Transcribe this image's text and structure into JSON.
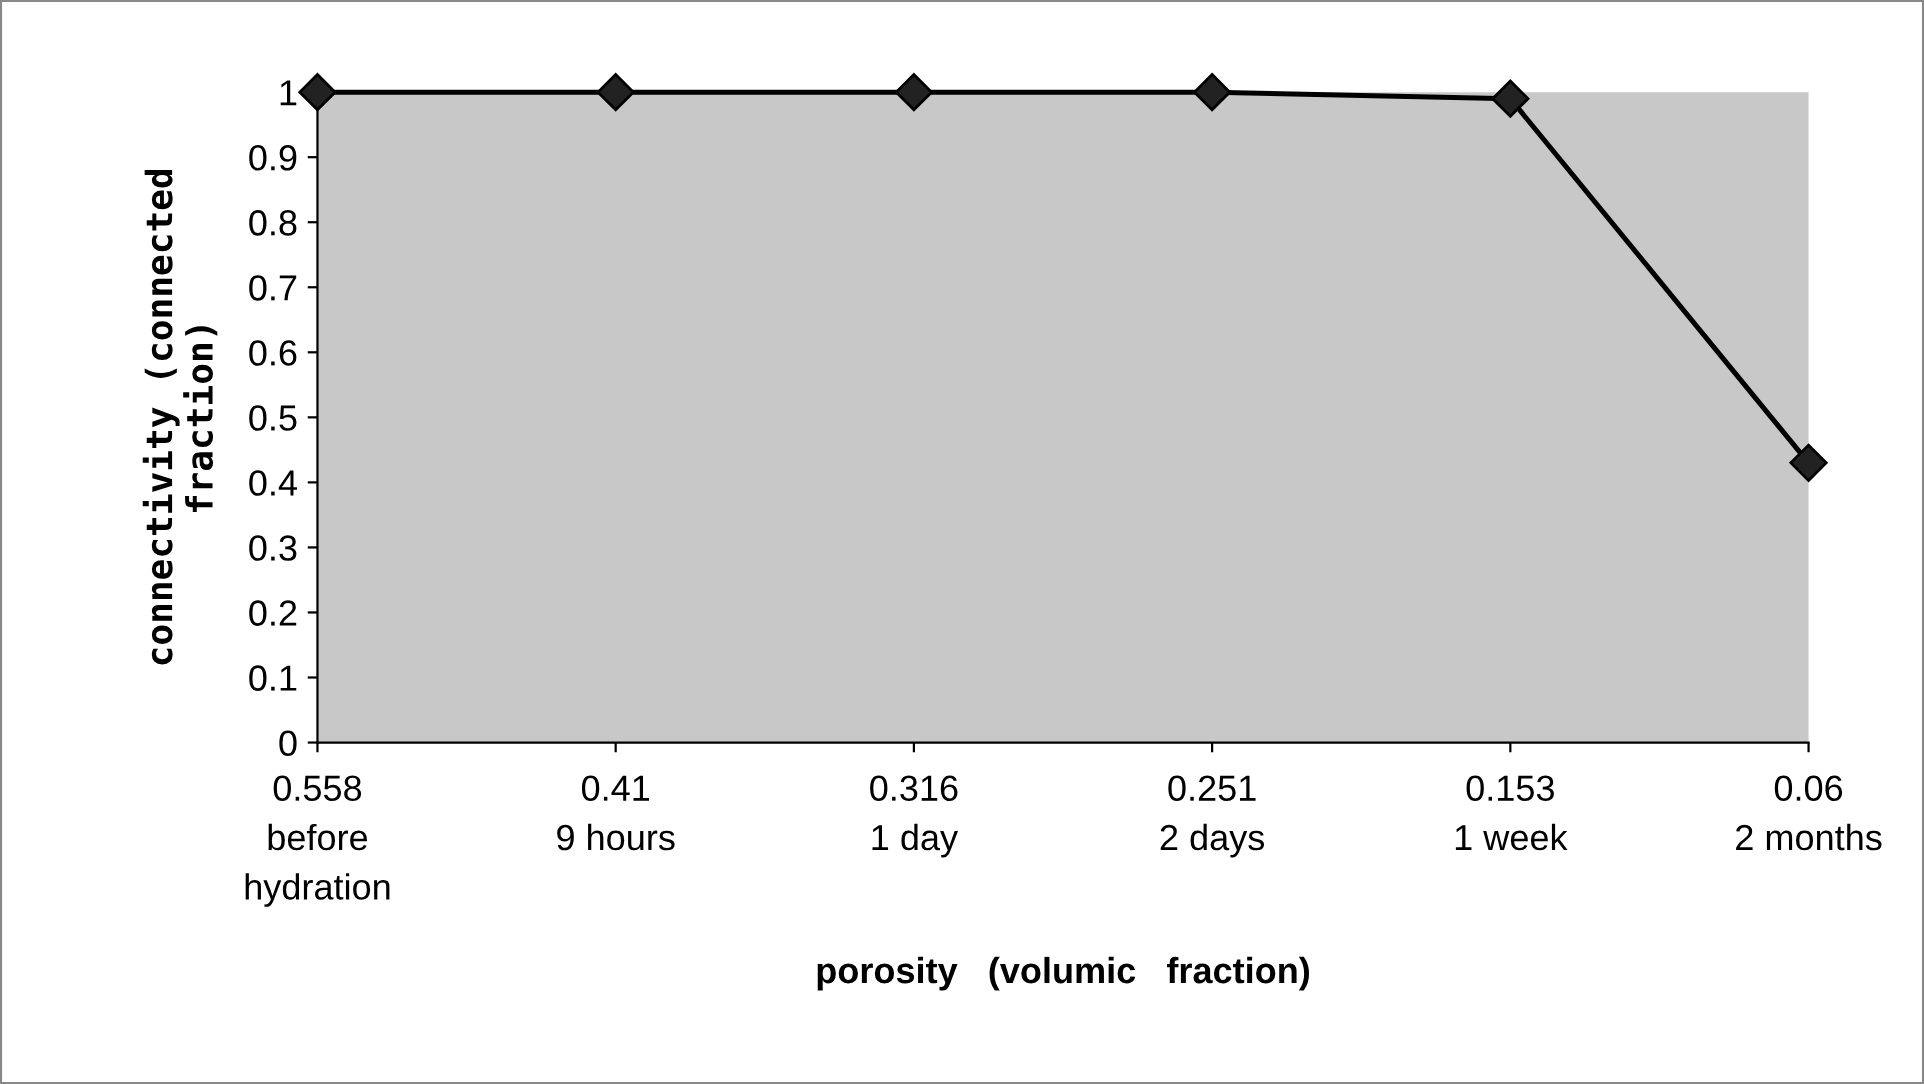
{
  "chart_data": {
    "type": "line",
    "xlabel": "porosity   (volumic   fraction)",
    "ylabel": "connectivity (connected\nfraction)",
    "categories": [
      "0.558\nbefore\nhydration",
      "0.41\n9 hours",
      "0.316\n1 day",
      "0.251\n2 days",
      "0.153\n1 week",
      "0.06\n2 months"
    ],
    "series": [
      {
        "color": "#000000",
        "values": [
          1,
          1,
          1,
          1,
          0.99,
          0.43
        ]
      }
    ],
    "ylim": [
      0,
      1
    ],
    "yticks": [
      0,
      0.1,
      0.2,
      0.3,
      0.4,
      0.5,
      0.6,
      0.7,
      0.8,
      0.9,
      1
    ],
    "marker": "diamond",
    "line_style": "solid",
    "grid": false,
    "legend": false
  }
}
